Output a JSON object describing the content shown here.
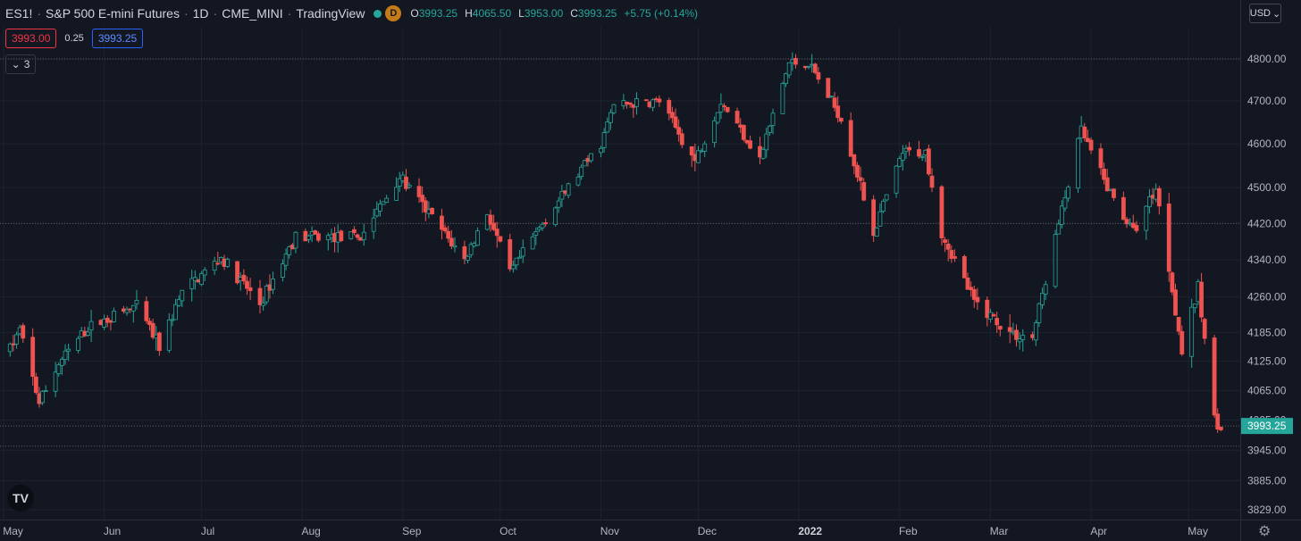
{
  "header": {
    "symbol": "ES1!",
    "name": "S&P 500 E-mini Futures",
    "interval": "1D",
    "exchange": "CME_MINI",
    "source": "TradingView",
    "delayed_badge": "D",
    "ohlc": {
      "o_label": "O",
      "o": "3993.25",
      "h_label": "H",
      "h": "4065.50",
      "l_label": "L",
      "l": "3953.00",
      "c_label": "C",
      "c": "3993.25",
      "change": "+5.75 (+0.14%)"
    }
  },
  "quote": {
    "bid": "3993.00",
    "spread": "0.25",
    "ask": "3993.25"
  },
  "indicators": {
    "collapsed_count": "3"
  },
  "currency": {
    "label": "USD"
  },
  "colors": {
    "up": "#26a69a",
    "down": "#ef5350",
    "background": "#131722",
    "grid": "#1e222d",
    "last_price": "#26a69a"
  },
  "chart_data": {
    "type": "candlestick",
    "y_axis": {
      "ticks": [
        4800,
        4700,
        4600,
        4500,
        4420,
        4340,
        4260,
        4185,
        4125,
        4065,
        4005,
        3945,
        3885,
        3829
      ],
      "tick_labels": [
        "4800.00",
        "4700.00",
        "4600.00",
        "4500.00",
        "4420.00",
        "4340.00",
        "4260.00",
        "4185.00",
        "4125.00",
        "4065.00",
        "4005.00",
        "3945.00",
        "3885.00",
        "3829.00"
      ],
      "ylim": [
        3829,
        4800
      ],
      "scale": "log"
    },
    "x_axis": {
      "labels": [
        "May",
        "Jun",
        "Jul",
        "Aug",
        "Sep",
        "Oct",
        "Nov",
        "Dec",
        "2022",
        "Feb",
        "Mar",
        "Apr",
        "May"
      ]
    },
    "last_price": {
      "value": 3993.25,
      "label": "3993.25"
    },
    "dotted_levels": [
      4800,
      4420,
      3993.25,
      3953
    ],
    "grid": true,
    "anchors": [
      [
        "2021-05-03",
        4150
      ],
      [
        "2021-05-06",
        4190
      ],
      [
        "2021-05-12",
        4040
      ],
      [
        "2021-05-18",
        4120
      ],
      [
        "2021-05-27",
        4195
      ],
      [
        "2021-06-11",
        4240
      ],
      [
        "2021-06-18",
        4155
      ],
      [
        "2021-06-25",
        4270
      ],
      [
        "2021-07-07",
        4345
      ],
      [
        "2021-07-19",
        4245
      ],
      [
        "2021-07-30",
        4390
      ],
      [
        "2021-08-19",
        4390
      ],
      [
        "2021-08-31",
        4525
      ],
      [
        "2021-09-20",
        4340
      ],
      [
        "2021-09-27",
        4445
      ],
      [
        "2021-10-04",
        4310
      ],
      [
        "2021-10-14",
        4420
      ],
      [
        "2021-11-01",
        4600
      ],
      [
        "2021-11-05",
        4690
      ],
      [
        "2021-11-19",
        4700
      ],
      [
        "2021-11-30",
        4560
      ],
      [
        "2021-12-08",
        4700
      ],
      [
        "2021-12-20",
        4565
      ],
      [
        "2021-12-29",
        4790
      ],
      [
        "2022-01-04",
        4790
      ],
      [
        "2022-01-14",
        4660
      ],
      [
        "2022-01-24",
        4400
      ],
      [
        "2022-02-02",
        4580
      ],
      [
        "2022-02-09",
        4580
      ],
      [
        "2022-02-14",
        4400
      ],
      [
        "2022-02-24",
        4250
      ],
      [
        "2022-03-08",
        4180
      ],
      [
        "2022-03-14",
        4175
      ],
      [
        "2022-03-29",
        4630
      ],
      [
        "2022-04-06",
        4500
      ],
      [
        "2022-04-14",
        4400
      ],
      [
        "2022-04-21",
        4500
      ],
      [
        "2022-04-29",
        4145
      ],
      [
        "2022-05-04",
        4280
      ],
      [
        "2022-05-09",
        4005
      ],
      [
        "2022-05-12",
        3990
      ]
    ]
  }
}
